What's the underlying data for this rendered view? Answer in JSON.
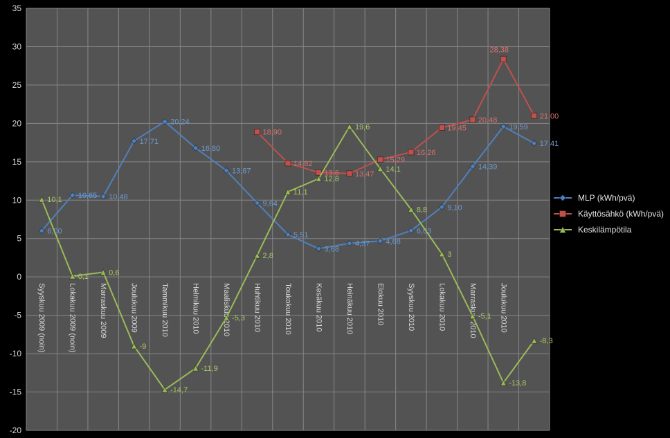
{
  "chart_data": {
    "type": "line",
    "title": "",
    "xlabel": "",
    "ylabel": "",
    "ylim": [
      -20,
      35
    ],
    "ytick_step": 5,
    "grid": true,
    "legend_position": "right",
    "page_bg": "#000000",
    "plot_bg": "#535353",
    "grid_color": "#878787",
    "axis_text_color": "#d9d9d9",
    "categories": [
      "Syyskuu 2009 (noin)",
      "Lokakuu 2009 (noin)",
      "Marraskuu 2009",
      "Joulukuu 2009",
      "Tammikuu 2010",
      "Helmikuu 2010",
      "Maaliskuu 2010",
      "Huhtikuu 2010",
      "Toukokuu 2010",
      "Kesäkuu 2010",
      "Heinäkuu 2010",
      "Elokuu 2010",
      "Syyskuu 2010",
      "Lokakuu 2010",
      "Marraskuu 2010",
      "Joulukuu 2010",
      ""
    ],
    "y_tick_labels": [
      "35",
      "30",
      "25",
      "20",
      "15",
      "10",
      "5",
      "0",
      "-5",
      "-10",
      "-15",
      "-20"
    ],
    "series": [
      {
        "name": "MLP (kWh/pvä)",
        "color": "#4f81bd",
        "label_color": "#6d9ad2",
        "marker": "diamond",
        "values": [
          6.0,
          10.65,
          10.48,
          17.71,
          20.24,
          16.8,
          13.87,
          9.64,
          5.51,
          3.68,
          4.37,
          4.68,
          6.03,
          9.1,
          14.39,
          19.59,
          17.41
        ],
        "labels": [
          "6,00",
          "10,65",
          "10,48",
          "17,71",
          "20,24",
          "16,80",
          "13,87",
          "9,64",
          "5,51",
          "3,68",
          "4,37",
          "4,68",
          "6,03",
          "9,10",
          "14,39",
          "19,59",
          "17,41"
        ]
      },
      {
        "name": "Käyttösähkö (kWh/pvä)",
        "color": "#c0504d",
        "label_color": "#d8726e",
        "marker": "square",
        "values": [
          null,
          null,
          null,
          null,
          null,
          null,
          null,
          18.9,
          14.82,
          13.6,
          13.47,
          15.29,
          16.26,
          19.45,
          20.48,
          28.38,
          21.0
        ],
        "labels": [
          "",
          "",
          "",
          "",
          "",
          "",
          "",
          "18,90",
          "14,82",
          "13,6",
          "13,47",
          "15,29",
          "16,26",
          "19,45",
          "20,48",
          "28,38",
          "21,00"
        ],
        "label_overrides": {
          "15": "above"
        }
      },
      {
        "name": "Keskilämpötila",
        "color": "#9bbb59",
        "label_color": "#a9c966",
        "marker": "triangle",
        "values": [
          10.1,
          0.1,
          0.6,
          -9,
          -14.7,
          -11.9,
          -5.3,
          2.8,
          11.1,
          12.8,
          19.6,
          14.1,
          8.8,
          3,
          -5.1,
          -13.8,
          -8.3
        ],
        "labels": [
          "10,1",
          "0,1",
          "0,6",
          "-9",
          "-14,7",
          "-11,9",
          "-5,3",
          "2,8",
          "11,1",
          "12,8",
          "19,6",
          "14,1",
          "8,8",
          "3",
          "-5,1",
          "-13,8",
          "-8,3"
        ]
      }
    ]
  }
}
